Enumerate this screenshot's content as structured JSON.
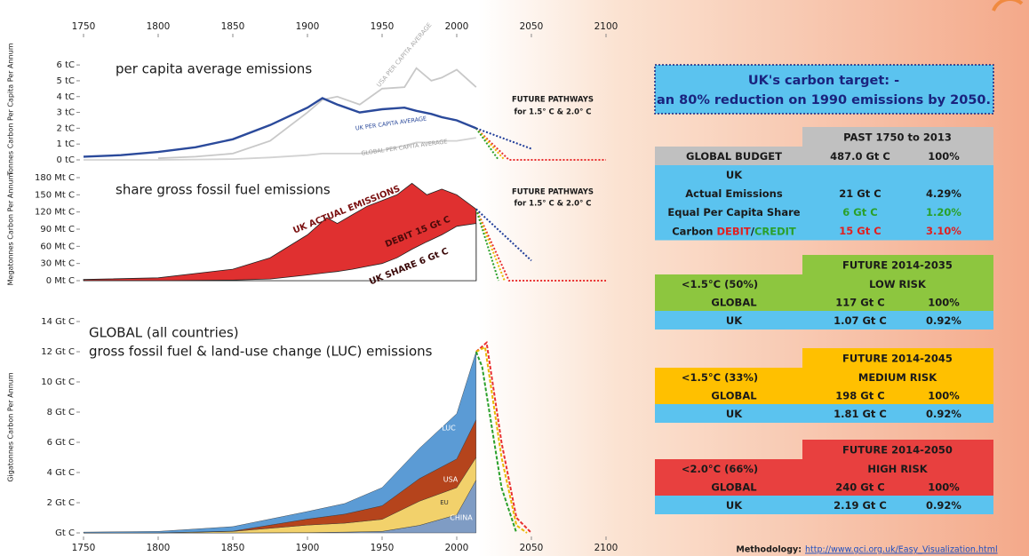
{
  "chart_data": [
    {
      "type": "line",
      "title": "per capita average emissions",
      "y_label": "Tonnes Carbon Per Capita Per Annum",
      "xlim": [
        1750,
        2100
      ],
      "xticks": [
        1750,
        1800,
        1850,
        1900,
        1950,
        2000,
        2050,
        2100
      ],
      "ylim": [
        0,
        6.4
      ],
      "yticks": [
        {
          "value": 0,
          "label": "0 tC"
        },
        {
          "value": 1,
          "label": "1 tC"
        },
        {
          "value": 2,
          "label": "2 tC"
        },
        {
          "value": 3,
          "label": "3 tC"
        },
        {
          "value": 4,
          "label": "4 tC"
        },
        {
          "value": 5,
          "label": "5 tC"
        },
        {
          "value": 6,
          "label": "6 tC"
        }
      ],
      "x": [
        1750,
        1775,
        1800,
        1825,
        1850,
        1875,
        1900,
        1910,
        1920,
        1935,
        1950,
        1965,
        1973,
        1983,
        1990,
        2000,
        2013
      ],
      "series": [
        {
          "name": "USA PER CAPITA AVERAGE",
          "color": "#c8c8c8",
          "values": [
            null,
            null,
            0.1,
            0.2,
            0.4,
            1.2,
            3.0,
            3.8,
            4.0,
            3.5,
            4.5,
            4.6,
            5.8,
            5.0,
            5.2,
            5.7,
            4.6
          ]
        },
        {
          "name": "GLOBAL PER CAPITA AVERAGE",
          "color": "#d2d2d2",
          "values": [
            0,
            0,
            0,
            0.02,
            0.05,
            0.15,
            0.3,
            0.4,
            0.4,
            0.4,
            0.6,
            0.9,
            1.1,
            1.1,
            1.2,
            1.2,
            1.4
          ]
        },
        {
          "name": "UK PER CAPITA AVERAGE",
          "color": "#2b4a9b",
          "values": [
            0.2,
            0.3,
            0.5,
            0.8,
            1.3,
            2.2,
            3.3,
            3.9,
            3.5,
            3.0,
            3.2,
            3.3,
            3.1,
            2.9,
            2.7,
            2.5,
            2.0
          ]
        }
      ],
      "pathways": [
        {
          "color": "#e83030",
          "x": [
            2013,
            2035,
            2100
          ],
          "values": [
            2.0,
            0,
            0
          ]
        },
        {
          "color": "#e8b800",
          "x": [
            2013,
            2032
          ],
          "values": [
            2.0,
            0
          ]
        },
        {
          "color": "#2aa02a",
          "x": [
            2013,
            2028
          ],
          "values": [
            2.0,
            0
          ]
        },
        {
          "color": "#1f3c99",
          "x": [
            2013,
            2050
          ],
          "values": [
            2.0,
            0.7
          ]
        }
      ],
      "annotations": [
        "FUTURE PATHWAYS",
        "for 1.5° C & 2.0° C"
      ]
    },
    {
      "type": "area",
      "title": "share gross fossil fuel emissions",
      "y_label": "Megatonnes Carbon Per Annum",
      "xlim": [
        1750,
        2100
      ],
      "ylim": [
        0,
        180
      ],
      "yticks": [
        {
          "value": 0,
          "label": "0 Mt C"
        },
        {
          "value": 30,
          "label": "30 Mt C"
        },
        {
          "value": 60,
          "label": "60 Mt C"
        },
        {
          "value": 90,
          "label": "90 Mt C"
        },
        {
          "value": 120,
          "label": "120 Mt C"
        },
        {
          "value": 150,
          "label": "150 Mt C"
        },
        {
          "value": 180,
          "label": "180 Mt C"
        }
      ],
      "x": [
        1750,
        1800,
        1850,
        1875,
        1900,
        1913,
        1920,
        1930,
        1940,
        1950,
        1960,
        1970,
        1980,
        1990,
        2000,
        2013
      ],
      "series": [
        {
          "name": "UK ACTUAL EMISSIONS",
          "color": "#e03030",
          "values": [
            2,
            5,
            20,
            40,
            80,
            110,
            100,
            115,
            130,
            140,
            150,
            170,
            150,
            160,
            150,
            125
          ]
        },
        {
          "name": "UK SHARE 6 Gt C",
          "color": "#ffffff",
          "values": [
            0,
            0,
            1,
            3,
            10,
            14,
            16,
            20,
            25,
            30,
            40,
            55,
            68,
            80,
            95,
            100
          ]
        }
      ],
      "pathways": [
        {
          "color": "#e83030",
          "x": [
            2013,
            2035,
            2100
          ],
          "values": [
            125,
            0,
            0
          ]
        },
        {
          "color": "#e8b800",
          "x": [
            2013,
            2032
          ],
          "values": [
            125,
            0
          ]
        },
        {
          "color": "#2aa02a",
          "x": [
            2013,
            2028
          ],
          "values": [
            125,
            0
          ]
        },
        {
          "color": "#1f3c99",
          "x": [
            2013,
            2050
          ],
          "values": [
            125,
            35
          ]
        }
      ],
      "annotations": [
        "DEBIT 15 Gt C",
        "FUTURE PATHWAYS",
        "for 1.5° C & 2.0° C"
      ]
    },
    {
      "type": "stacked-area",
      "title": "GLOBAL (all countries)",
      "subtitle": "gross fossil fuel & land-use change (LUC) emissions",
      "y_label": "Gigatonnes Carbon Per Annum",
      "xlim": [
        1750,
        2100
      ],
      "xticks": [
        1750,
        1800,
        1850,
        1900,
        1950,
        2000,
        2050,
        2100
      ],
      "ylim": [
        0,
        14
      ],
      "yticks": [
        {
          "value": 0,
          "label": "Gt C"
        },
        {
          "value": 2,
          "label": "2 Gt C"
        },
        {
          "value": 4,
          "label": "4 Gt C"
        },
        {
          "value": 6,
          "label": "6 Gt C"
        },
        {
          "value": 8,
          "label": "8 Gt C"
        },
        {
          "value": 10,
          "label": "10 Gt C"
        },
        {
          "value": 12,
          "label": "12 Gt C"
        },
        {
          "value": 14,
          "label": "14 Gt C"
        }
      ],
      "x": [
        1750,
        1800,
        1850,
        1900,
        1925,
        1950,
        1975,
        2000,
        2013
      ],
      "series": [
        {
          "name": "CHINA",
          "color": "#7f9cc4",
          "values": [
            0,
            0,
            0,
            0.02,
            0.05,
            0.1,
            0.5,
            1.2,
            3.5
          ]
        },
        {
          "name": "EU",
          "color": "#f2d16b",
          "values": [
            0,
            0,
            0.1,
            0.5,
            0.6,
            0.8,
            1.6,
            1.8,
            1.5
          ]
        },
        {
          "name": "USA",
          "color": "#b5441c",
          "values": [
            0,
            0,
            0.02,
            0.4,
            0.6,
            0.9,
            1.5,
            1.9,
            2.5
          ]
        },
        {
          "name": "LUC",
          "color": "#5b9bd5",
          "values": [
            0.05,
            0.1,
            0.3,
            0.5,
            0.7,
            1.2,
            2.0,
            3.0,
            4.5
          ]
        }
      ],
      "pathways": [
        {
          "color": "#e83030",
          "x": [
            2013,
            2020,
            2030,
            2040,
            2050
          ],
          "values": [
            12,
            12.6,
            6,
            1,
            0
          ]
        },
        {
          "color": "#e8b800",
          "x": [
            2013,
            2019,
            2030,
            2040,
            2047
          ],
          "values": [
            12,
            12.3,
            5,
            0.5,
            0
          ]
        },
        {
          "color": "#2aa02a",
          "x": [
            2013,
            2017,
            2030,
            2040
          ],
          "values": [
            12,
            11,
            3,
            0
          ]
        }
      ]
    }
  ],
  "target": {
    "lines": [
      "UK's carbon target: -",
      "an 80% reduction on 1990 emissions by 2050."
    ]
  },
  "tables": [
    {
      "header": "PAST 1750 to 2013",
      "header_color": "#c0c0c0",
      "rows": [
        {
          "color": "#c0c0c0",
          "cells": [
            "GLOBAL BUDGET",
            "487.0 Gt C",
            "100%"
          ]
        },
        {
          "color": "#5bc3ef",
          "cells": [
            "UK"
          ]
        },
        {
          "color": "#5bc3ef",
          "cells": [
            "Actual Emissions",
            "21 Gt C",
            "4.29%"
          ]
        },
        {
          "color": "#5bc3ef",
          "value_color": "#2aa02a",
          "cells": [
            "Equal Per Capita Share",
            "6 Gt C",
            "1.20%"
          ]
        },
        {
          "color": "#5bc3ef",
          "value_color": "#e02020",
          "cells": [
            {
              "parts": [
                {
                  "text": "Carbon",
                  "color": "#1a1a1a"
                },
                {
                  "text": "DEBIT",
                  "color": "#e02020"
                },
                {
                  "text": "/",
                  "color": "#1a1a1a"
                },
                {
                  "text": "CREDIT",
                  "color": "#2aa02a"
                }
              ]
            },
            "15 Gt C",
            "3.10%"
          ]
        }
      ]
    },
    {
      "header": "FUTURE 2014-2035",
      "header_color": "#8dc63f",
      "rows": [
        {
          "color": "#8dc63f",
          "cells": [
            "<1.5°C (50%)",
            "LOW RISK"
          ]
        },
        {
          "color": "#8dc63f",
          "cells": [
            "GLOBAL",
            "117 Gt C",
            "100%"
          ]
        },
        {
          "color": "#5bc3ef",
          "cells": [
            "UK",
            "1.07 Gt C",
            "0.92%"
          ]
        }
      ]
    },
    {
      "header": "FUTURE 2014-2045",
      "header_color": "#ffc000",
      "rows": [
        {
          "color": "#ffc000",
          "cells": [
            "<1.5°C (33%)",
            "MEDIUM RISK"
          ]
        },
        {
          "color": "#ffc000",
          "cells": [
            "GLOBAL",
            "198 Gt C",
            "100%"
          ]
        },
        {
          "color": "#5bc3ef",
          "cells": [
            "UK",
            "1.81 Gt C",
            "0.92%"
          ]
        }
      ]
    },
    {
      "header": "FUTURE 2014-2050",
      "header_color": "#e8403f",
      "rows": [
        {
          "color": "#e8403f",
          "cells": [
            "<2.0°C (66%)",
            "HIGH RISK"
          ]
        },
        {
          "color": "#e8403f",
          "cells": [
            "GLOBAL",
            "240 Gt C",
            "100%"
          ]
        },
        {
          "color": "#5bc3ef",
          "cells": [
            "UK",
            "2.19 Gt C",
            "0.92%"
          ]
        }
      ]
    }
  ],
  "footer": {
    "label": "Methodology:",
    "link": "http://www.gci.org.uk/Easy_Visualization.html"
  }
}
